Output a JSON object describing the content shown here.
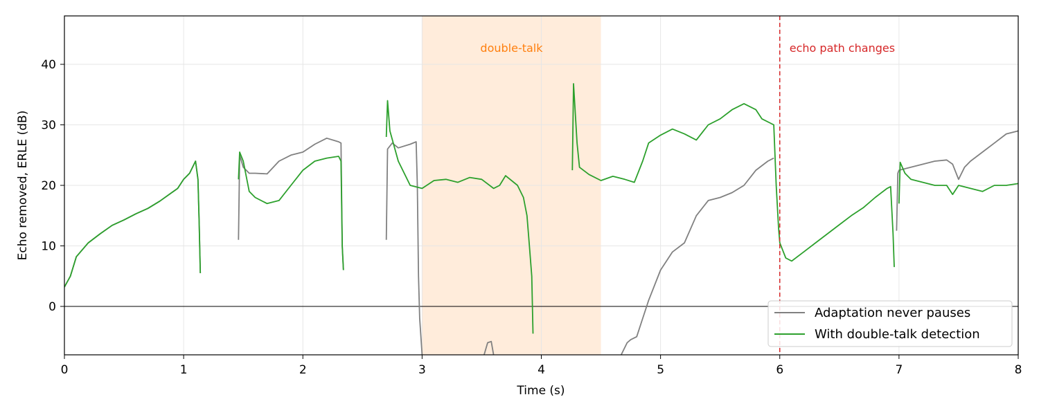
{
  "chart_data": {
    "type": "line",
    "title": "",
    "xlabel": "Time (s)",
    "ylabel": "Echo removed, ERLE (dB)",
    "xlim": [
      0,
      8
    ],
    "ylim": [
      -8,
      48
    ],
    "x_ticks": [
      "0",
      "1",
      "2",
      "3",
      "4",
      "5",
      "6",
      "7",
      "8"
    ],
    "y_ticks": [
      "0",
      "10",
      "20",
      "30",
      "40"
    ],
    "grid": true,
    "legend_position": "bottom-right",
    "zero_line": true,
    "double_talk_region": {
      "x_start": 3.0,
      "x_end": 4.5,
      "label": "double-talk",
      "color": "#ff7f0e"
    },
    "echo_path_change": {
      "x": 6.0,
      "label": "echo path changes",
      "color": "#d62728"
    },
    "series": [
      {
        "name": "Adaptation never pauses",
        "color": "#808080",
        "segments": [
          [
            [
              0,
              3.2
            ],
            [
              0.05,
              5
            ],
            [
              0.1,
              8.2
            ],
            [
              0.2,
              10.5
            ],
            [
              0.3,
              12
            ],
            [
              0.4,
              13.4
            ],
            [
              0.5,
              14.3
            ],
            [
              0.6,
              15.3
            ],
            [
              0.7,
              16.2
            ],
            [
              0.8,
              17.4
            ],
            [
              0.9,
              18.8
            ],
            [
              0.95,
              19.5
            ],
            [
              1.0,
              21
            ],
            [
              1.05,
              22
            ],
            [
              1.1,
              24
            ],
            [
              1.12,
              21
            ],
            [
              1.13,
              14
            ],
            [
              1.14,
              5.5
            ]
          ],
          [
            [
              1.46,
              11
            ],
            [
              1.47,
              25
            ],
            [
              1.5,
              23
            ],
            [
              1.55,
              22
            ],
            [
              1.6,
              22
            ],
            [
              1.7,
              21.9
            ],
            [
              1.8,
              24
            ],
            [
              1.9,
              25
            ],
            [
              2.0,
              25.5
            ],
            [
              2.1,
              26.8
            ],
            [
              2.2,
              27.8
            ],
            [
              2.3,
              27.2
            ],
            [
              2.32,
              27
            ],
            [
              2.33,
              10
            ],
            [
              2.34,
              6
            ]
          ],
          [
            [
              2.7,
              11
            ],
            [
              2.71,
              26
            ],
            [
              2.75,
              27
            ],
            [
              2.8,
              26.2
            ],
            [
              2.9,
              26.8
            ],
            [
              2.95,
              27.2
            ],
            [
              2.96,
              20
            ],
            [
              2.97,
              5
            ],
            [
              2.98,
              -2
            ],
            [
              3.0,
              -8
            ]
          ],
          [
            [
              3.52,
              -8
            ],
            [
              3.55,
              -6
            ],
            [
              3.58,
              -5.8
            ],
            [
              3.6,
              -8
            ]
          ],
          [
            [
              4.67,
              -8
            ],
            [
              4.72,
              -6
            ],
            [
              4.75,
              -5.5
            ],
            [
              4.8,
              -5
            ],
            [
              4.85,
              -2
            ],
            [
              4.9,
              1
            ],
            [
              5.0,
              6
            ],
            [
              5.1,
              9
            ],
            [
              5.2,
              10.5
            ],
            [
              5.3,
              15
            ],
            [
              5.4,
              17.5
            ],
            [
              5.5,
              18
            ],
            [
              5.6,
              18.8
            ],
            [
              5.7,
              20
            ],
            [
              5.8,
              22.5
            ],
            [
              5.9,
              24
            ],
            [
              5.95,
              24.5
            ]
          ],
          [
            [
              6.0,
              24.5
            ]
          ],
          [
            [
              6.98,
              12.5
            ],
            [
              6.99,
              22
            ],
            [
              7.0,
              22.5
            ],
            [
              7.1,
              23
            ],
            [
              7.2,
              23.5
            ],
            [
              7.3,
              24
            ],
            [
              7.4,
              24.2
            ],
            [
              7.45,
              23.5
            ],
            [
              7.5,
              21
            ],
            [
              7.55,
              23
            ],
            [
              7.6,
              24
            ],
            [
              7.7,
              25.5
            ],
            [
              7.8,
              27
            ],
            [
              7.9,
              28.5
            ],
            [
              8.0,
              29
            ]
          ]
        ]
      },
      {
        "name": "With double-talk detection",
        "color": "#2ca02c",
        "segments": [
          [
            [
              0,
              3.2
            ],
            [
              0.05,
              5
            ],
            [
              0.1,
              8.2
            ],
            [
              0.2,
              10.5
            ],
            [
              0.3,
              12
            ],
            [
              0.4,
              13.4
            ],
            [
              0.5,
              14.3
            ],
            [
              0.6,
              15.3
            ],
            [
              0.7,
              16.2
            ],
            [
              0.8,
              17.4
            ],
            [
              0.9,
              18.8
            ],
            [
              0.95,
              19.5
            ],
            [
              1.0,
              21
            ],
            [
              1.05,
              22
            ],
            [
              1.1,
              24
            ],
            [
              1.12,
              21
            ],
            [
              1.13,
              14
            ],
            [
              1.14,
              5.5
            ]
          ],
          [
            [
              1.46,
              21
            ],
            [
              1.47,
              25.5
            ],
            [
              1.5,
              24
            ],
            [
              1.55,
              19
            ],
            [
              1.6,
              18
            ],
            [
              1.7,
              17
            ],
            [
              1.8,
              17.5
            ],
            [
              1.9,
              20
            ],
            [
              2.0,
              22.5
            ],
            [
              2.1,
              24
            ],
            [
              2.2,
              24.5
            ],
            [
              2.3,
              24.8
            ],
            [
              2.32,
              24
            ],
            [
              2.33,
              10
            ],
            [
              2.34,
              6
            ]
          ],
          [
            [
              2.7,
              28
            ],
            [
              2.71,
              34
            ],
            [
              2.73,
              29
            ],
            [
              2.8,
              24
            ],
            [
              2.9,
              20
            ],
            [
              3.0,
              19.5
            ],
            [
              3.1,
              20.8
            ],
            [
              3.2,
              21
            ],
            [
              3.3,
              20.5
            ],
            [
              3.4,
              21.3
            ],
            [
              3.5,
              21
            ],
            [
              3.6,
              19.5
            ],
            [
              3.65,
              20
            ],
            [
              3.7,
              21.6
            ],
            [
              3.8,
              20
            ],
            [
              3.85,
              18
            ],
            [
              3.88,
              15
            ],
            [
              3.9,
              10
            ],
            [
              3.92,
              5
            ],
            [
              3.93,
              -4.5
            ]
          ],
          [
            [
              4.26,
              22.5
            ],
            [
              4.27,
              36.8
            ],
            [
              4.3,
              27
            ],
            [
              4.32,
              23
            ],
            [
              4.4,
              21.8
            ],
            [
              4.5,
              20.8
            ],
            [
              4.6,
              21.5
            ],
            [
              4.7,
              21
            ],
            [
              4.78,
              20.5
            ],
            [
              4.85,
              24
            ],
            [
              4.9,
              27
            ],
            [
              5.0,
              28.3
            ],
            [
              5.1,
              29.3
            ],
            [
              5.2,
              28.5
            ],
            [
              5.3,
              27.5
            ],
            [
              5.4,
              30
            ],
            [
              5.5,
              31
            ],
            [
              5.6,
              32.5
            ],
            [
              5.7,
              33.5
            ],
            [
              5.8,
              32.5
            ],
            [
              5.85,
              31
            ],
            [
              5.95,
              30
            ],
            [
              5.97,
              20
            ],
            [
              5.99,
              13
            ],
            [
              6.0,
              10.5
            ],
            [
              6.05,
              8
            ],
            [
              6.1,
              7.5
            ],
            [
              6.2,
              9
            ],
            [
              6.3,
              10.5
            ],
            [
              6.4,
              12
            ],
            [
              6.5,
              13.5
            ],
            [
              6.6,
              15
            ],
            [
              6.7,
              16.3
            ],
            [
              6.8,
              18
            ],
            [
              6.9,
              19.5
            ],
            [
              6.93,
              19.8
            ],
            [
              6.95,
              12
            ],
            [
              6.96,
              6.5
            ]
          ],
          [
            [
              7.0,
              17
            ],
            [
              7.01,
              23.8
            ],
            [
              7.05,
              22
            ],
            [
              7.1,
              21
            ],
            [
              7.2,
              20.5
            ],
            [
              7.3,
              20
            ],
            [
              7.4,
              20
            ],
            [
              7.45,
              18.5
            ],
            [
              7.5,
              20
            ],
            [
              7.6,
              19.5
            ],
            [
              7.7,
              19
            ],
            [
              7.8,
              20
            ],
            [
              7.9,
              20
            ],
            [
              8.0,
              20.3
            ]
          ]
        ]
      }
    ]
  }
}
